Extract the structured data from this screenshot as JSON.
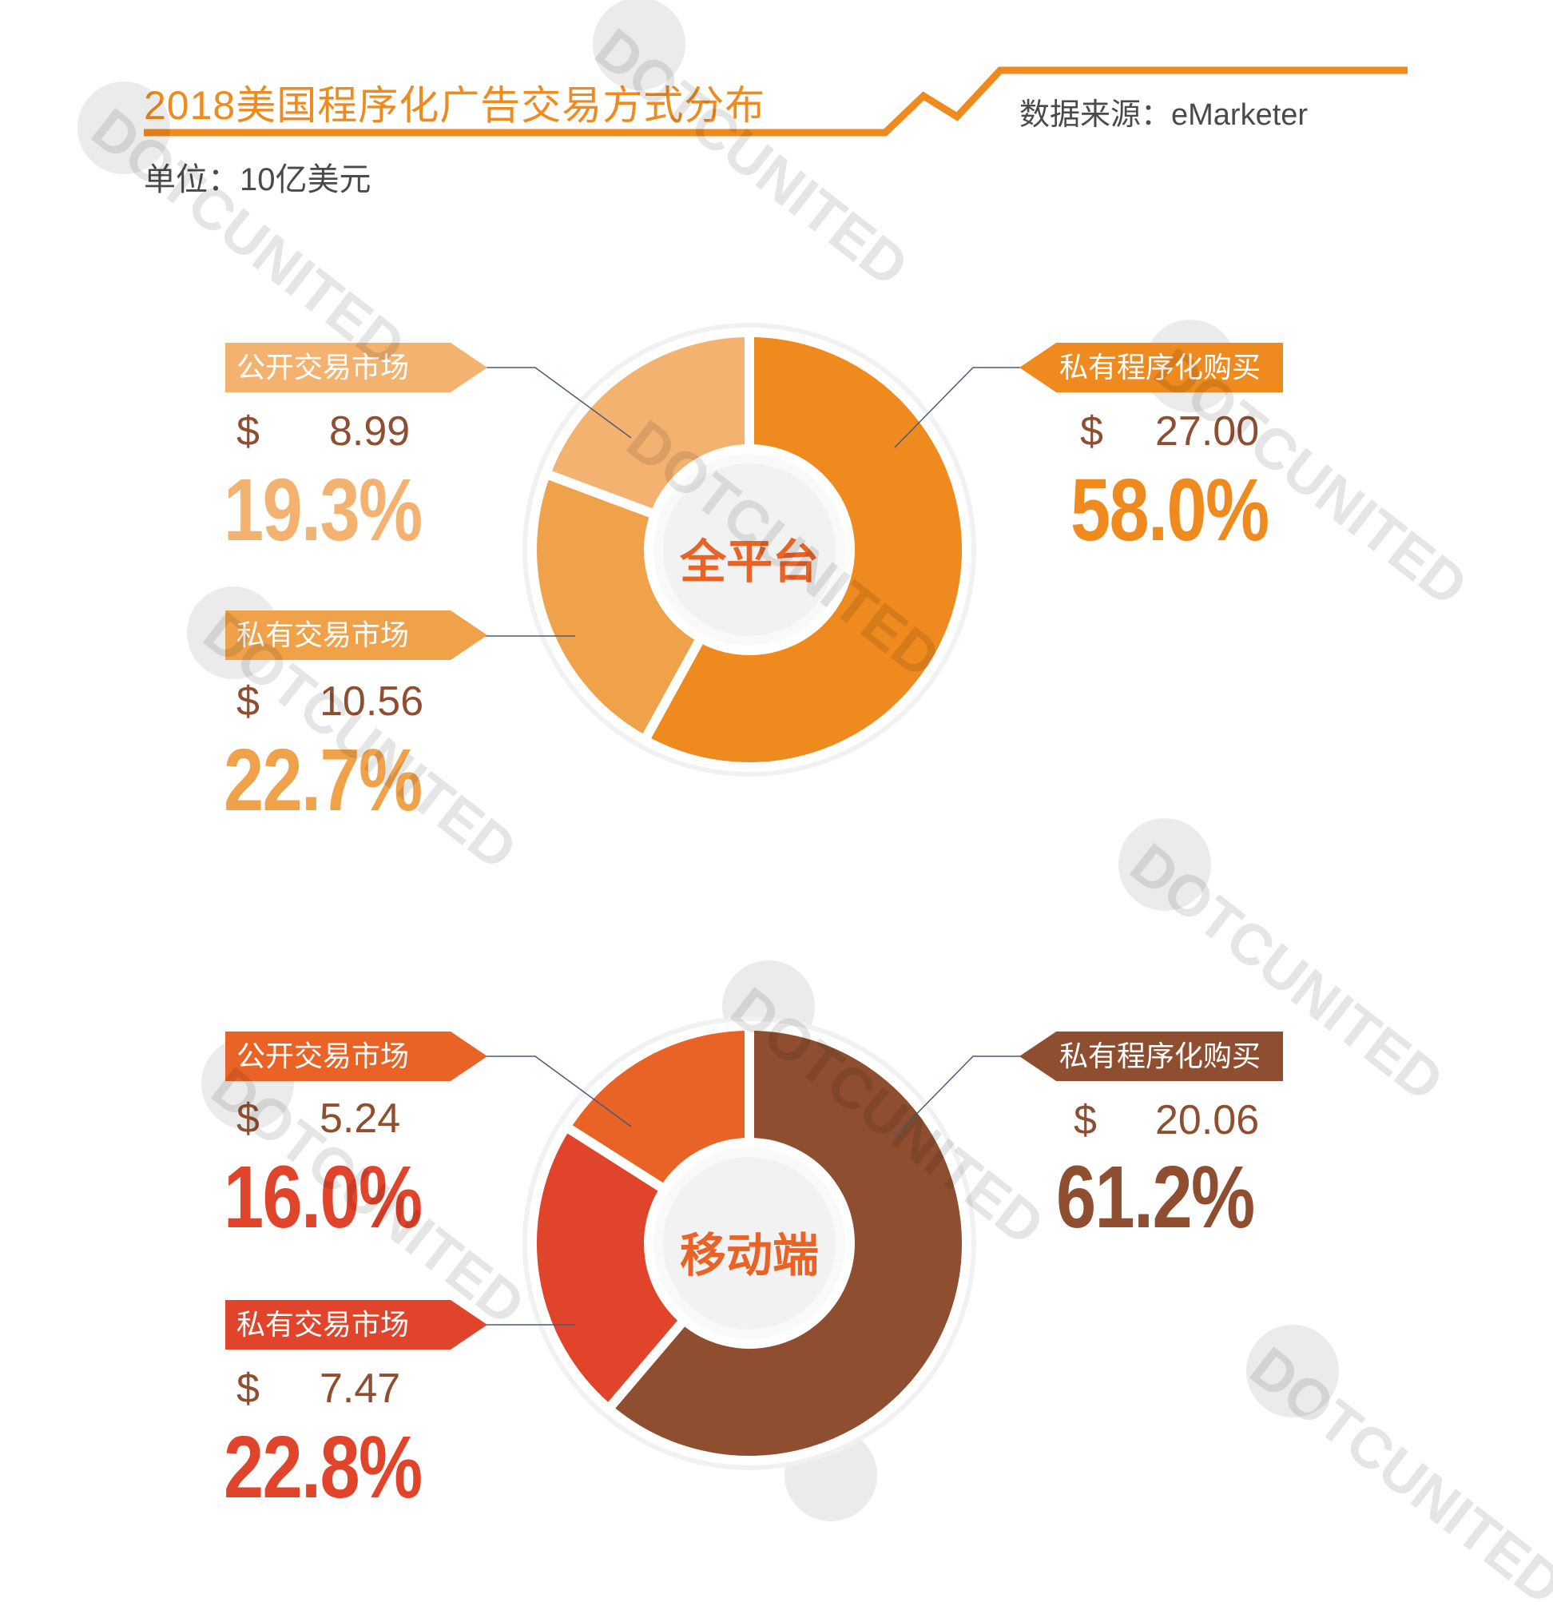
{
  "header": {
    "title": "2018美国程序化广告交易方式分布",
    "source": "数据来源：eMarketer",
    "unit": "单位：10亿美元"
  },
  "currency_symbol": "$",
  "watermark": "DOTCUNITED",
  "colors": {
    "title": "#EE8A1E",
    "all_public": "#F3B270",
    "all_private_market": "#F0A24A",
    "all_private_programmatic": "#EE8A1E",
    "mobile_public": "#E96326",
    "mobile_private_market": "#E0452C",
    "mobile_private_programmatic": "#8F4E2F",
    "amount_text": "#8F4E2F",
    "center_text": "#E96326"
  },
  "chart_data": [
    {
      "type": "pie",
      "style": "donut",
      "center_label": "全平台",
      "unit": "10亿美元",
      "slices": [
        {
          "label": "私有程序化购买",
          "value": 27.0,
          "value_text": "27.00",
          "percent": 58.0,
          "percent_text": "58.0%",
          "color": "#EE8A1E"
        },
        {
          "label": "私有交易市场",
          "value": 10.56,
          "value_text": "10.56",
          "percent": 22.7,
          "percent_text": "22.7%",
          "color": "#F0A24A"
        },
        {
          "label": "公开交易市场",
          "value": 8.99,
          "value_text": "8.99",
          "percent": 19.3,
          "percent_text": "19.3%",
          "color": "#F3B270"
        }
      ]
    },
    {
      "type": "pie",
      "style": "donut",
      "center_label": "移动端",
      "unit": "10亿美元",
      "slices": [
        {
          "label": "私有程序化购买",
          "value": 20.06,
          "value_text": "20.06",
          "percent": 61.2,
          "percent_text": "61.2%",
          "color": "#8F4E2F"
        },
        {
          "label": "私有交易市场",
          "value": 7.47,
          "value_text": "7.47",
          "percent": 22.8,
          "percent_text": "22.8%",
          "color": "#E0452C"
        },
        {
          "label": "公开交易市场",
          "value": 5.24,
          "value_text": "5.24",
          "percent": 16.0,
          "percent_text": "16.0%",
          "color": "#E96326"
        }
      ]
    }
  ]
}
